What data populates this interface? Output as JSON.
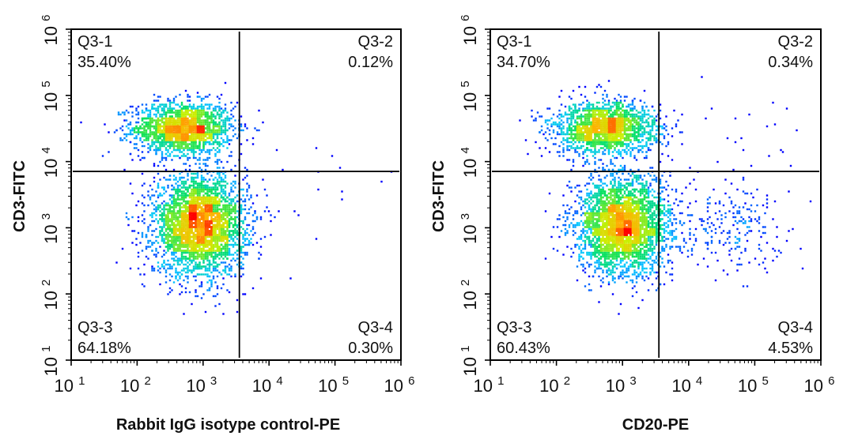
{
  "chart_data": [
    {
      "type": "scatter",
      "subtype": "flow-cytometry density dot plot",
      "xlabel": "Rabbit IgG isotype control-PE",
      "ylabel": "CD3-FITC",
      "x_scale": "log",
      "y_scale": "log",
      "xlim": [
        10,
        1000000
      ],
      "ylim": [
        10,
        1000000
      ],
      "x_ticks": [
        {
          "base": "10",
          "exp": "1"
        },
        {
          "base": "10",
          "exp": "2"
        },
        {
          "base": "10",
          "exp": "3"
        },
        {
          "base": "10",
          "exp": "4"
        },
        {
          "base": "10",
          "exp": "5"
        },
        {
          "base": "10",
          "exp": "6"
        }
      ],
      "y_ticks": [
        {
          "base": "10",
          "exp": "1"
        },
        {
          "base": "10",
          "exp": "2"
        },
        {
          "base": "10",
          "exp": "3"
        },
        {
          "base": "10",
          "exp": "4"
        },
        {
          "base": "10",
          "exp": "5"
        },
        {
          "base": "10",
          "exp": "6"
        }
      ],
      "gates": {
        "x": 3550,
        "y": 7100
      },
      "quadrants": [
        {
          "name": "Q3-1",
          "value": "35.40%"
        },
        {
          "name": "Q3-2",
          "value": "0.12%"
        },
        {
          "name": "Q3-3",
          "value": "64.18%"
        },
        {
          "name": "Q3-4",
          "value": "0.30%"
        }
      ],
      "populations": [
        {
          "x_center": 500,
          "y_center": 32000,
          "x_spread_decades": 0.38,
          "y_spread_decades": 0.2,
          "fraction": 0.354
        },
        {
          "x_center": 900,
          "y_center": 1100,
          "x_spread_decades": 0.35,
          "y_spread_decades": 0.38,
          "fraction": 0.642
        },
        {
          "x_center": 30000,
          "y_center": 3000,
          "x_spread_decades": 0.6,
          "y_spread_decades": 0.5,
          "fraction": 0.004
        }
      ],
      "colormap": [
        "#0000ff",
        "#00c8ff",
        "#00e060",
        "#c8f000",
        "#ffb000",
        "#ff0000"
      ]
    },
    {
      "type": "scatter",
      "subtype": "flow-cytometry density dot plot",
      "xlabel": "CD20-PE",
      "ylabel": "CD3-FITC",
      "x_scale": "log",
      "y_scale": "log",
      "xlim": [
        10,
        1000000
      ],
      "ylim": [
        10,
        1000000
      ],
      "x_ticks": [
        {
          "base": "10",
          "exp": "1"
        },
        {
          "base": "10",
          "exp": "2"
        },
        {
          "base": "10",
          "exp": "3"
        },
        {
          "base": "10",
          "exp": "4"
        },
        {
          "base": "10",
          "exp": "5"
        },
        {
          "base": "10",
          "exp": "6"
        }
      ],
      "y_ticks": [
        {
          "base": "10",
          "exp": "1"
        },
        {
          "base": "10",
          "exp": "2"
        },
        {
          "base": "10",
          "exp": "3"
        },
        {
          "base": "10",
          "exp": "4"
        },
        {
          "base": "10",
          "exp": "5"
        },
        {
          "base": "10",
          "exp": "6"
        }
      ],
      "gates": {
        "x": 3550,
        "y": 7100
      },
      "quadrants": [
        {
          "name": "Q3-1",
          "value": "34.70%"
        },
        {
          "name": "Q3-2",
          "value": "0.34%"
        },
        {
          "name": "Q3-3",
          "value": "60.43%"
        },
        {
          "name": "Q3-4",
          "value": "4.53%"
        }
      ],
      "populations": [
        {
          "x_center": 550,
          "y_center": 32000,
          "x_spread_decades": 0.4,
          "y_spread_decades": 0.2,
          "fraction": 0.347
        },
        {
          "x_center": 1000,
          "y_center": 1100,
          "x_spread_decades": 0.35,
          "y_spread_decades": 0.38,
          "fraction": 0.604
        },
        {
          "x_center": 40000,
          "y_center": 1000,
          "x_spread_decades": 0.45,
          "y_spread_decades": 0.35,
          "fraction": 0.045
        },
        {
          "x_center": 50000,
          "y_center": 20000,
          "x_spread_decades": 0.6,
          "y_spread_decades": 0.4,
          "fraction": 0.004
        }
      ],
      "colormap": [
        "#0000ff",
        "#00c8ff",
        "#00e060",
        "#c8f000",
        "#ffb000",
        "#ff0000"
      ]
    }
  ]
}
